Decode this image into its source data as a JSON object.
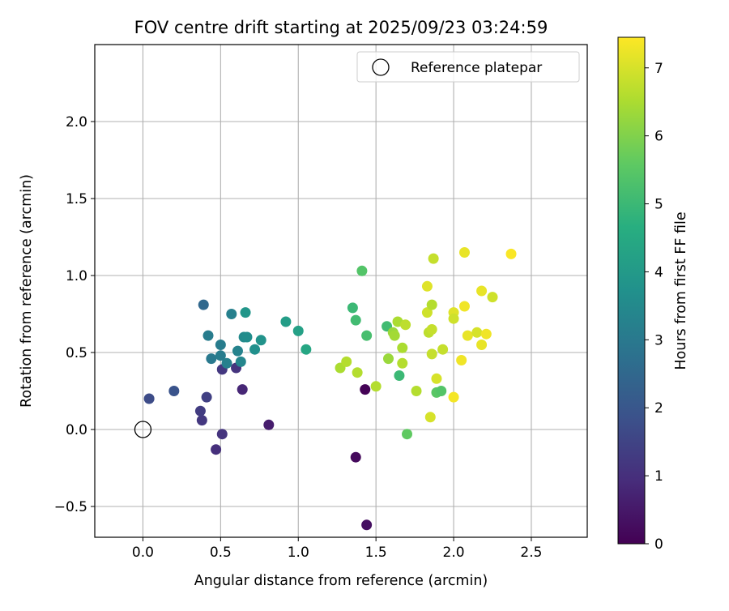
{
  "chart_data": {
    "type": "scatter",
    "title": "FOV centre drift starting at 2025/09/23 03:24:59",
    "xlabel": "Angular distance from reference (arcmin)",
    "ylabel": "Rotation from reference (arcmin)",
    "xlim": [
      -0.31,
      2.86
    ],
    "ylim": [
      -0.7,
      2.5
    ],
    "xticks": [
      0.0,
      0.5,
      1.0,
      1.5,
      2.0,
      2.5
    ],
    "xtick_labels": [
      "0.0",
      "0.5",
      "1.0",
      "1.5",
      "2.0",
      "2.5"
    ],
    "yticks": [
      -0.5,
      0.0,
      0.5,
      1.0,
      1.5,
      2.0
    ],
    "ytick_labels": [
      "−0.5",
      "0.0",
      "0.5",
      "1.0",
      "1.5",
      "2.0"
    ],
    "grid": true,
    "legend": {
      "position": "top-right",
      "entries": [
        "Reference platepar"
      ]
    },
    "reference_point": {
      "x": 0.0,
      "y": 0.0,
      "label": "Reference platepar"
    },
    "colorbar": {
      "label": "Hours from first FF file",
      "colormap": "viridis",
      "range": [
        0,
        7.45
      ],
      "ticks": [
        0,
        1,
        2,
        3,
        4,
        5,
        6,
        7
      ],
      "tick_labels": [
        "0",
        "1",
        "2",
        "3",
        "4",
        "5",
        "6",
        "7"
      ]
    },
    "points": [
      {
        "x": 1.43,
        "y": 0.26,
        "c": 0.05
      },
      {
        "x": 1.37,
        "y": -0.18,
        "c": 0.2
      },
      {
        "x": 1.44,
        "y": -0.62,
        "c": 0.3
      },
      {
        "x": 0.81,
        "y": 0.03,
        "c": 0.6
      },
      {
        "x": 0.64,
        "y": 0.26,
        "c": 0.8
      },
      {
        "x": 0.47,
        "y": -0.13,
        "c": 1.0
      },
      {
        "x": 0.51,
        "y": -0.03,
        "c": 1.1
      },
      {
        "x": 0.38,
        "y": 0.06,
        "c": 1.2
      },
      {
        "x": 0.37,
        "y": 0.12,
        "c": 1.3
      },
      {
        "x": 0.41,
        "y": 0.21,
        "c": 1.4
      },
      {
        "x": 0.6,
        "y": 0.4,
        "c": 1.1
      },
      {
        "x": 0.51,
        "y": 0.39,
        "c": 1.2
      },
      {
        "x": 0.2,
        "y": 0.25,
        "c": 1.9
      },
      {
        "x": 0.04,
        "y": 0.2,
        "c": 1.7
      },
      {
        "x": 0.39,
        "y": 0.81,
        "c": 2.5
      },
      {
        "x": 0.42,
        "y": 0.61,
        "c": 3.1
      },
      {
        "x": 0.44,
        "y": 0.46,
        "c": 3.0
      },
      {
        "x": 0.5,
        "y": 0.55,
        "c": 3.1
      },
      {
        "x": 0.5,
        "y": 0.48,
        "c": 3.1
      },
      {
        "x": 0.54,
        "y": 0.43,
        "c": 3.2
      },
      {
        "x": 0.57,
        "y": 0.75,
        "c": 3.2
      },
      {
        "x": 0.61,
        "y": 0.51,
        "c": 3.3
      },
      {
        "x": 0.63,
        "y": 0.44,
        "c": 3.4
      },
      {
        "x": 0.65,
        "y": 0.6,
        "c": 3.5
      },
      {
        "x": 0.67,
        "y": 0.6,
        "c": 3.6
      },
      {
        "x": 0.66,
        "y": 0.76,
        "c": 3.9
      },
      {
        "x": 0.72,
        "y": 0.52,
        "c": 3.7
      },
      {
        "x": 0.76,
        "y": 0.58,
        "c": 3.8
      },
      {
        "x": 0.92,
        "y": 0.7,
        "c": 4.1
      },
      {
        "x": 1.0,
        "y": 0.64,
        "c": 4.2
      },
      {
        "x": 1.05,
        "y": 0.52,
        "c": 4.4
      },
      {
        "x": 1.35,
        "y": 0.79,
        "c": 5.0
      },
      {
        "x": 1.37,
        "y": 0.71,
        "c": 5.1
      },
      {
        "x": 1.41,
        "y": 1.03,
        "c": 5.4
      },
      {
        "x": 1.44,
        "y": 0.61,
        "c": 5.2
      },
      {
        "x": 1.57,
        "y": 0.67,
        "c": 5.1
      },
      {
        "x": 1.65,
        "y": 0.35,
        "c": 5.0
      },
      {
        "x": 1.7,
        "y": -0.03,
        "c": 5.6
      },
      {
        "x": 1.89,
        "y": 0.24,
        "c": 5.5
      },
      {
        "x": 1.92,
        "y": 0.25,
        "c": 5.4
      },
      {
        "x": 1.58,
        "y": 0.46,
        "c": 6.3
      },
      {
        "x": 1.61,
        "y": 0.63,
        "c": 6.3
      },
      {
        "x": 1.62,
        "y": 0.61,
        "c": 6.4
      },
      {
        "x": 1.64,
        "y": 0.7,
        "c": 6.5
      },
      {
        "x": 1.67,
        "y": 0.53,
        "c": 6.5
      },
      {
        "x": 1.67,
        "y": 0.43,
        "c": 6.6
      },
      {
        "x": 1.69,
        "y": 0.68,
        "c": 6.7
      },
      {
        "x": 1.5,
        "y": 0.28,
        "c": 6.6
      },
      {
        "x": 1.27,
        "y": 0.4,
        "c": 6.5
      },
      {
        "x": 1.31,
        "y": 0.44,
        "c": 6.6
      },
      {
        "x": 1.38,
        "y": 0.37,
        "c": 6.6
      },
      {
        "x": 1.76,
        "y": 0.25,
        "c": 6.6
      },
      {
        "x": 1.83,
        "y": 0.76,
        "c": 6.9
      },
      {
        "x": 1.84,
        "y": 0.63,
        "c": 6.7
      },
      {
        "x": 1.83,
        "y": 0.93,
        "c": 7.1
      },
      {
        "x": 1.86,
        "y": 0.65,
        "c": 6.8
      },
      {
        "x": 1.86,
        "y": 0.81,
        "c": 6.6
      },
      {
        "x": 1.86,
        "y": 0.49,
        "c": 6.8
      },
      {
        "x": 1.85,
        "y": 0.08,
        "c": 7.0
      },
      {
        "x": 1.87,
        "y": 1.11,
        "c": 6.8
      },
      {
        "x": 1.89,
        "y": 0.33,
        "c": 7.0
      },
      {
        "x": 1.93,
        "y": 0.52,
        "c": 6.8
      },
      {
        "x": 2.0,
        "y": 0.76,
        "c": 7.1
      },
      {
        "x": 2.0,
        "y": 0.72,
        "c": 6.9
      },
      {
        "x": 2.0,
        "y": 0.21,
        "c": 7.35
      },
      {
        "x": 2.05,
        "y": 0.45,
        "c": 7.3
      },
      {
        "x": 2.07,
        "y": 1.15,
        "c": 7.2
      },
      {
        "x": 2.07,
        "y": 0.8,
        "c": 7.3
      },
      {
        "x": 2.09,
        "y": 0.61,
        "c": 7.2
      },
      {
        "x": 2.15,
        "y": 0.63,
        "c": 7.0
      },
      {
        "x": 2.18,
        "y": 0.9,
        "c": 7.2
      },
      {
        "x": 2.18,
        "y": 0.55,
        "c": 7.2
      },
      {
        "x": 2.21,
        "y": 0.62,
        "c": 7.3
      },
      {
        "x": 2.25,
        "y": 0.86,
        "c": 6.9
      },
      {
        "x": 2.37,
        "y": 1.14,
        "c": 7.4
      }
    ]
  }
}
